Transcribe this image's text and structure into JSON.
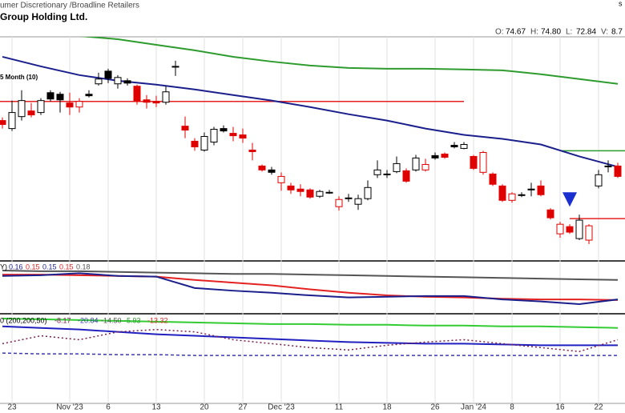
{
  "header": {
    "sector": "umer Discretionary  /Broadline Retailers",
    "company": "Group Holding Ltd.",
    "corner": "s",
    "quote": [
      {
        "label": "O:",
        "value": "74.67"
      },
      {
        "label": "H:",
        "value": "74.80"
      },
      {
        "label": "L:",
        "value": "72.84"
      },
      {
        "label": "V:",
        "value": "8.7"
      }
    ]
  },
  "chart_data": [
    {
      "type": "candlestick",
      "label": "5 Month (10)",
      "categories": [
        null,
        "23",
        null,
        null,
        null,
        null,
        null,
        "Nov '23",
        null,
        null,
        null,
        "6",
        null,
        null,
        null,
        null,
        "13",
        null,
        null,
        null,
        null,
        "20",
        null,
        null,
        null,
        "27",
        null,
        null,
        null,
        "Dec '23",
        null,
        null,
        null,
        null,
        null,
        "11",
        null,
        null,
        null,
        null,
        "18",
        null,
        null,
        null,
        null,
        "26",
        null,
        null,
        null,
        "Jan '24",
        null,
        null,
        null,
        "8",
        null,
        null,
        null,
        null,
        "16",
        null,
        null,
        null,
        "22",
        null,
        null
      ],
      "open": [
        83.17,
        82.5,
        83.5,
        83.97,
        83.84,
        85.5,
        85.37,
        84.64,
        84.3,
        85.37,
        86.24,
        87.3,
        86.24,
        86.5,
        86.04,
        84.9,
        84.77,
        84.7,
        87.7,
        82.7,
        81.44,
        80.7,
        81.37,
        82.5,
        82.1,
        81.97,
        80.7,
        79.37,
        79.04,
        77.97,
        77.7,
        77.44,
        77.37,
        76.84,
        77.17,
        75.97,
        76.7,
        76.17,
        76.64,
        78.64,
        78.64,
        78.9,
        78.97,
        79.04,
        79.04,
        80.24,
        80.37,
        81.1,
        80.84,
        80.17,
        78.84,
        78.7,
        77.7,
        76.5,
        76.97,
        77.44,
        77.7,
        75.7,
        73.7,
        74.3,
        73.3,
        73.17,
        77.7,
        79.37,
        79.37
      ],
      "high": [
        83.44,
        84.84,
        85.7,
        84.64,
        85.04,
        85.7,
        85.57,
        85.5,
        85.04,
        85.7,
        87.17,
        87.5,
        86.97,
        86.7,
        86.17,
        85.3,
        85.24,
        86.04,
        88.17,
        83.5,
        81.7,
        82.17,
        82.64,
        82.77,
        82.64,
        82.5,
        81.3,
        79.5,
        79.3,
        78.84,
        77.97,
        77.84,
        77.5,
        77.37,
        77.37,
        76.84,
        77.04,
        76.97,
        78.17,
        79.84,
        79.04,
        80.17,
        79.17,
        80.3,
        79.97,
        80.5,
        80.5,
        81.37,
        81.37,
        80.3,
        80.64,
        78.84,
        77.84,
        77.17,
        77.17,
        77.97,
        78.17,
        75.84,
        74.7,
        74.5,
        75.3,
        74.5,
        79.04,
        79.84,
        79.64
      ],
      "low": [
        82.5,
        82.3,
        83.17,
        83.44,
        83.64,
        84.77,
        83.84,
        83.64,
        83.84,
        85.1,
        86.1,
        86.3,
        85.84,
        86.1,
        84.5,
        84.17,
        84.3,
        84.5,
        86.9,
        81.7,
        80.64,
        80.57,
        81.1,
        82.17,
        81.44,
        81.3,
        79.84,
        78.9,
        78.64,
        77.3,
        77.04,
        76.84,
        76.64,
        76.7,
        77.04,
        75.64,
        76.37,
        75.7,
        76.5,
        78.37,
        78.37,
        78.77,
        77.97,
        78.9,
        78.9,
        79.9,
        79.97,
        80.84,
        80.77,
        79.04,
        78.64,
        77.7,
        76.37,
        76.3,
        76.77,
        76.84,
        76.84,
        74.9,
        73.37,
        73.7,
        73.17,
        72.84,
        77.5,
        78.84,
        78.37
      ],
      "close": [
        82.84,
        83.84,
        84.84,
        83.64,
        84.84,
        84.97,
        84.9,
        84.3,
        84.77,
        85.24,
        86.64,
        86.7,
        86.77,
        86.3,
        84.77,
        84.7,
        84.64,
        85.57,
        87.64,
        82.37,
        80.97,
        81.84,
        82.44,
        82.3,
        81.9,
        81.7,
        80.57,
        79.04,
        78.84,
        78.5,
        77.37,
        77.24,
        76.77,
        77.24,
        77.17,
        76.57,
        76.64,
        76.64,
        77.57,
        79.04,
        78.7,
        79.57,
        78.1,
        80.04,
        79.5,
        80.04,
        80.1,
        80.97,
        81.17,
        79.17,
        80.5,
        77.84,
        76.5,
        77.04,
        76.9,
        77.37,
        76.97,
        75.04,
        74.5,
        73.84,
        74.84,
        74.37,
        78.64,
        79.3,
        78.5
      ],
      "candle_colors": [
        "#e00000",
        "#000000",
        "#000000",
        "#e00000",
        "#000000",
        "#000000",
        "#000000",
        "#e00000",
        "#e00000",
        "#000000",
        "#000000",
        "#000000",
        "#000000",
        "#000000",
        "#e00000",
        "#e00000",
        "#e00000",
        "#000000",
        "#000000",
        "#e00000",
        "#e00000",
        "#000000",
        "#000000",
        "#000000",
        "#e00000",
        "#e00000",
        "#e00000",
        "#e00000",
        "#000000",
        "#e00000",
        "#e00000",
        "#e00000",
        "#e00000",
        "#000000",
        "#000000",
        "#e00000",
        "#000000",
        "#000000",
        "#000000",
        "#000000",
        "#000000",
        "#000000",
        "#e00000",
        "#000000",
        "#e00000",
        "#000000",
        "#e00000",
        "#000000",
        "#000000",
        "#e00000",
        "#e00000",
        "#e00000",
        "#e00000",
        "#e00000",
        "#000000",
        "#000000",
        "#e00000",
        "#e00000",
        "#e00000",
        "#e00000",
        "#000000",
        "#e00000",
        "#000000",
        "#000000",
        "#e00000"
      ],
      "ylim": [
        71.5,
        90.17
      ],
      "x": [
        0,
        4,
        8,
        12,
        16,
        20,
        24,
        28,
        32,
        36,
        40,
        44,
        48,
        52,
        56,
        60,
        64
      ],
      "lines": [
        {
          "color": "#1a1f8c",
          "values": [
            88.5,
            87.7,
            86.97,
            86.5,
            86.17,
            85.77,
            85.3,
            84.84,
            84.3,
            83.7,
            83.17,
            82.5,
            81.97,
            81.64,
            81.17,
            80.17,
            79.3
          ]
        },
        {
          "color": "#2e9b2e",
          "values": [
            null,
            null,
            90.24,
            89.97,
            89.5,
            89.04,
            88.5,
            88.1,
            87.77,
            87.57,
            87.5,
            87.5,
            87.44,
            87.37,
            87.04,
            86.64,
            86.24
          ]
        }
      ],
      "levels": [
        {
          "color": "#e52222",
          "value": 84.77,
          "from": 0,
          "to": 48
        },
        {
          "color": "#e52222",
          "value": 74.97,
          "from": 59,
          "to": 64
        },
        {
          "color": "#2e9b2e",
          "value": 80.64,
          "from": 58,
          "to": 64
        }
      ],
      "signal": {
        "index": 59,
        "value": 76.5,
        "color": "#1a2fd0"
      }
    },
    {
      "type": "line",
      "label": "Y)",
      "legend_values": [
        0.16,
        0.15,
        0.15,
        0.15,
        0.18
      ],
      "legend_colors": [
        "#1a1f8c",
        "#e52222",
        "#1a1f8c",
        "#e52222",
        "#555555"
      ],
      "x": [
        0,
        4,
        8,
        12,
        16,
        20,
        24,
        28,
        32,
        36,
        40,
        44,
        48,
        52,
        56,
        60,
        64
      ],
      "ylim": [
        0.132,
        0.206
      ],
      "series": [
        {
          "color": "#555555",
          "values": [
            0.194,
            0.193,
            0.193,
            0.192,
            0.191,
            0.19,
            0.189,
            0.189,
            0.188,
            0.187,
            0.186,
            0.185,
            0.184,
            0.183,
            0.182,
            0.181,
            0.18
          ]
        },
        {
          "color": "#e52222",
          "values": [
            0.188,
            0.188,
            0.187,
            0.186,
            0.185,
            0.18,
            0.176,
            0.172,
            0.166,
            0.161,
            0.157,
            0.155,
            0.154,
            0.152,
            0.151,
            0.151,
            0.15
          ]
        },
        {
          "color": "#1a1f8c",
          "values": [
            0.186,
            0.187,
            0.19,
            0.186,
            0.185,
            0.168,
            0.164,
            0.161,
            0.157,
            0.154,
            0.155,
            0.156,
            0.156,
            0.151,
            0.148,
            0.144,
            0.151
          ]
        }
      ]
    },
    {
      "type": "line",
      "label": "0 (200,200,50)",
      "legend_values": [
        -8.17,
        -20.84,
        -14.5,
        -5.93,
        -13.32
      ],
      "legend_colors": [
        "#7a1f4f",
        "#3a3ab0",
        "#555555",
        "#2e9b2e",
        "#e52222"
      ],
      "legend_labels": [
        "-8.17",
        "-20.84",
        "-14.50",
        "-5.93",
        "-13.32"
      ],
      "x": [
        0,
        4,
        8,
        12,
        16,
        20,
        24,
        28,
        32,
        36,
        40,
        44,
        48,
        52,
        56,
        60,
        64
      ],
      "ylim": [
        -46.4,
        0.46
      ],
      "series": [
        {
          "color": "#33cc33",
          "values": [
            -0.82,
            -1.24,
            -1.67,
            -2.1,
            -2.52,
            -2.95,
            -3.37,
            -3.8,
            -3.8,
            -4.23,
            -4.23,
            -4.65,
            -4.65,
            -5.08,
            -5.08,
            -5.5,
            -5.93
          ]
        },
        {
          "color": "#2020c0",
          "values": [
            -5.08,
            -5.93,
            -6.78,
            -8.06,
            -9.34,
            -10.19,
            -11.04,
            -11.89,
            -12.75,
            -13.6,
            -14.02,
            -14.45,
            -14.45,
            -14.88,
            -15.3,
            -15.3,
            -15.3
          ]
        },
        {
          "color": "#7a1f4f",
          "dash": "2,3",
          "values": [
            -14.45,
            -10.19,
            -12.32,
            -8.06,
            -6.78,
            -8.06,
            -12.32,
            -14.45,
            -16.58,
            -17.86,
            -15.3,
            -13.6,
            -12.32,
            -14.45,
            -16.58,
            -18.71,
            -12.32
          ]
        },
        {
          "color": "#3a3ab0",
          "dash": "4,3",
          "values": [
            -19.56,
            -19.99,
            -19.99,
            -20.41,
            -20.41,
            -20.84,
            -20.84,
            -20.84,
            -20.84,
            -20.84,
            -20.84,
            -20.84,
            -20.84,
            -20.84,
            -20.84,
            -20.84,
            -20.84
          ]
        }
      ]
    }
  ]
}
